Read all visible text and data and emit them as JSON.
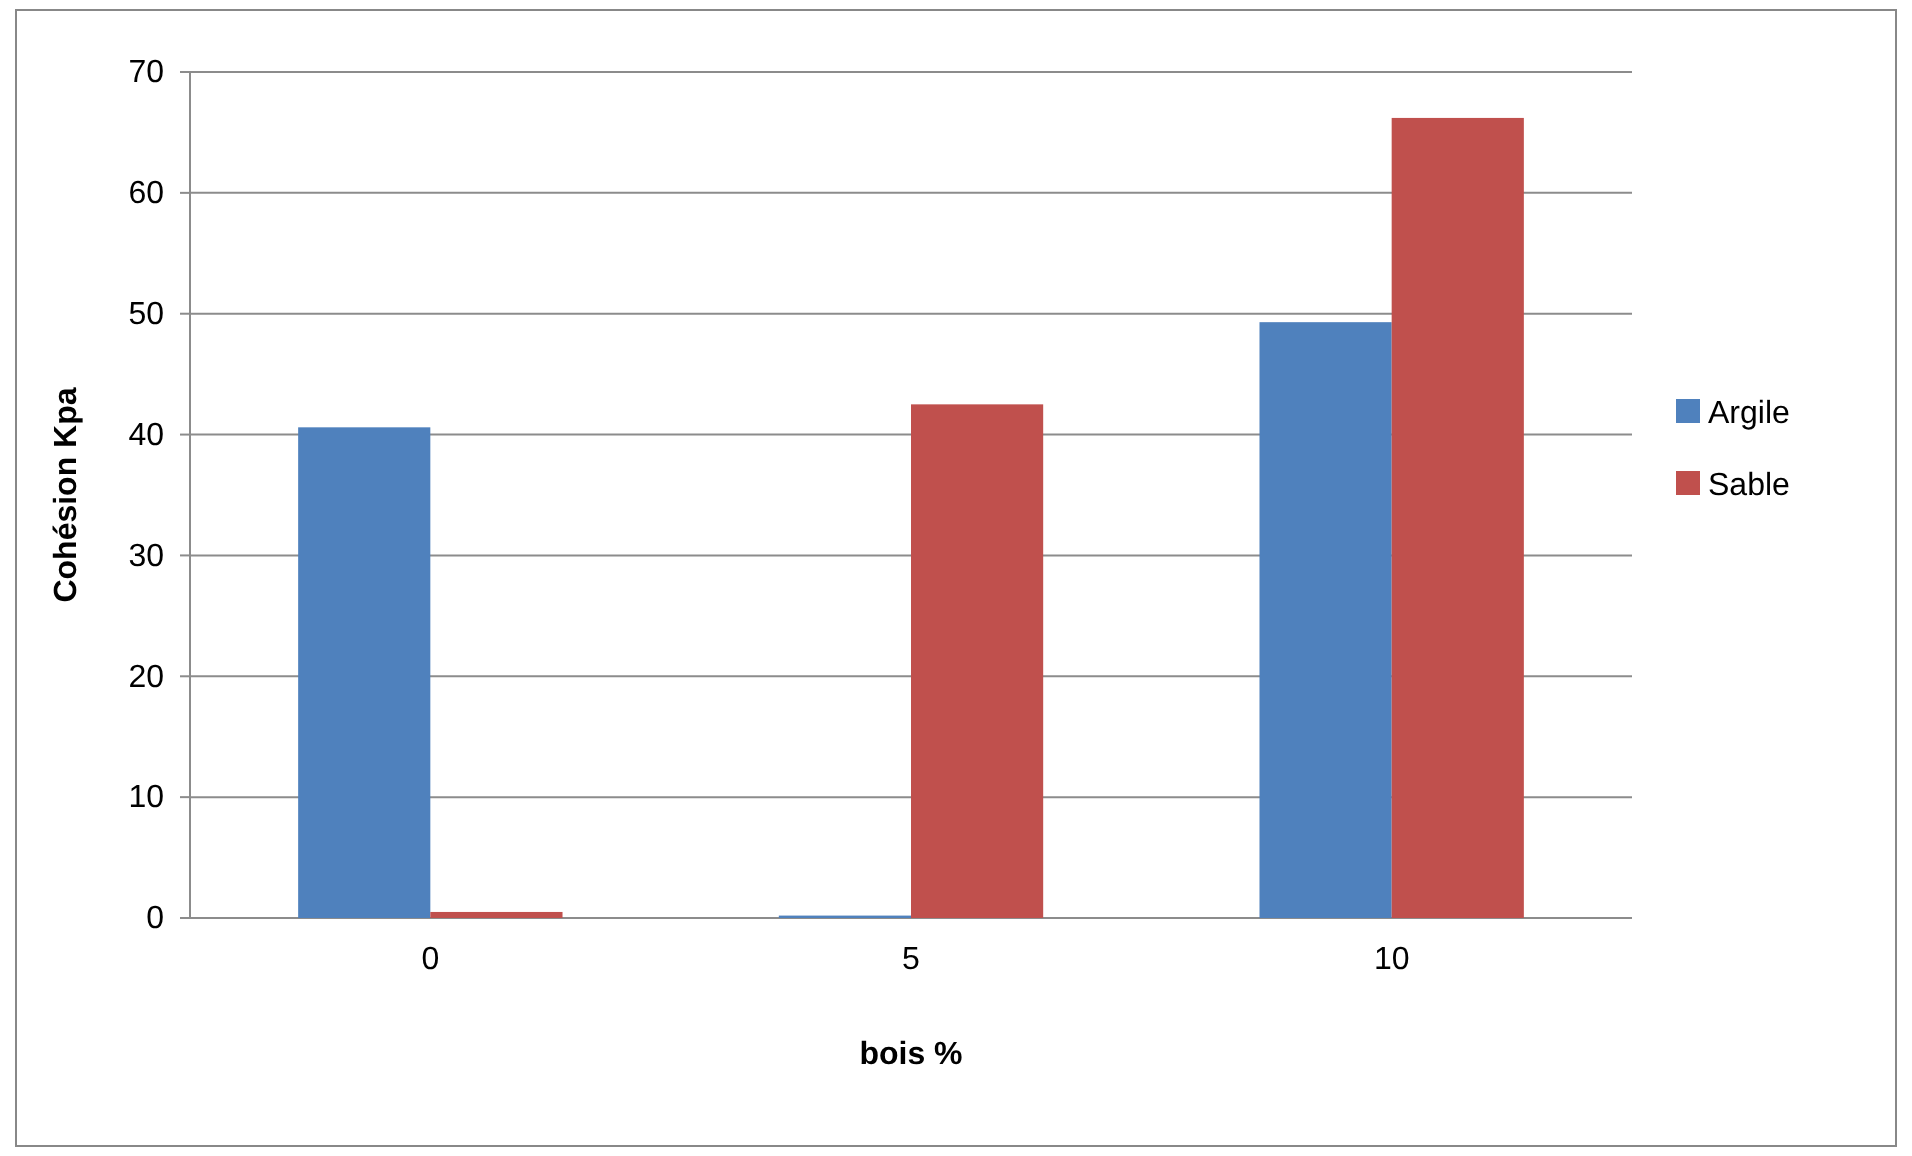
{
  "chart_data": {
    "type": "bar",
    "xlabel": "bois %",
    "ylabel": "Cohésion Kpa",
    "categories": [
      "0",
      "5",
      "10"
    ],
    "series": [
      {
        "name": "Argile",
        "color": "#4f81bd",
        "values": [
          40.6,
          0.2,
          49.3
        ]
      },
      {
        "name": "Sable",
        "color": "#c0504d",
        "values": [
          0.5,
          42.5,
          66.2
        ]
      }
    ],
    "ylim": [
      0,
      70
    ],
    "yticks": [
      0,
      10,
      20,
      30,
      40,
      50,
      60,
      70
    ],
    "grid": "y",
    "legend": "right"
  }
}
